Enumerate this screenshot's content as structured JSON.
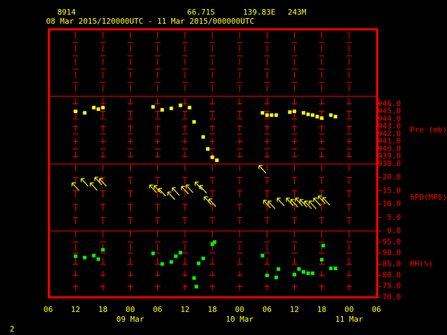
{
  "header": {
    "station": "8914",
    "lat": "66.71S",
    "lon": "139.83E",
    "elev": "243M",
    "range": "08 Mar 2015/120000UTC - 11 Mar 2015/000000UTC"
  },
  "page_number": "2",
  "x_axis": {
    "xlim": [
      "2015-03-08 06:00",
      "2015-03-11 06:00"
    ],
    "xticks": [
      {
        "value": "2015-03-08 06:00",
        "label": "06"
      },
      {
        "value": "2015-03-08 12:00",
        "label": "12"
      },
      {
        "value": "2015-03-08 18:00",
        "label": "18"
      },
      {
        "value": "2015-03-09 00:00",
        "label": "00"
      },
      {
        "value": "2015-03-09 06:00",
        "label": "06"
      },
      {
        "value": "2015-03-09 12:00",
        "label": "12"
      },
      {
        "value": "2015-03-09 18:00",
        "label": "18"
      },
      {
        "value": "2015-03-10 00:00",
        "label": "00"
      },
      {
        "value": "2015-03-10 06:00",
        "label": "06"
      },
      {
        "value": "2015-03-10 12:00",
        "label": "12"
      },
      {
        "value": "2015-03-10 18:00",
        "label": "18"
      },
      {
        "value": "2015-03-11 00:00",
        "label": "00"
      },
      {
        "value": "2015-03-11 06:00",
        "label": "06"
      }
    ],
    "day_labels": [
      {
        "value": "2015-03-09 00:00",
        "label": "09 Mar"
      },
      {
        "value": "2015-03-10 00:00",
        "label": "10 Mar"
      },
      {
        "value": "2015-03-11 00:00",
        "label": "11 Mar"
      }
    ]
  },
  "chart_data": [
    {
      "type": "scatter",
      "ylabel": "Pre (mb)",
      "color": "#ffff00",
      "ylim": [
        938,
        947
      ],
      "yticks": [
        {
          "value": 938,
          "label": "938.0"
        },
        {
          "value": 939,
          "label": "939.0"
        },
        {
          "value": 940,
          "label": "940.0"
        },
        {
          "value": 941,
          "label": "941.0"
        },
        {
          "value": 942,
          "label": "942.0"
        },
        {
          "value": 943,
          "label": "943.0"
        },
        {
          "value": 944,
          "label": "944.0"
        },
        {
          "value": 945,
          "label": "945.0"
        },
        {
          "value": 946,
          "label": "946.0"
        }
      ],
      "x": [
        "2015-03-08 12:00",
        "2015-03-08 14:00",
        "2015-03-08 16:00",
        "2015-03-08 17:00",
        "2015-03-08 18:00",
        "2015-03-09 05:00",
        "2015-03-09 07:00",
        "2015-03-09 09:00",
        "2015-03-09 11:00",
        "2015-03-09 13:00",
        "2015-03-09 14:00",
        "2015-03-09 16:00",
        "2015-03-09 17:00",
        "2015-03-09 18:00",
        "2015-03-09 19:00",
        "2015-03-10 05:00",
        "2015-03-10 06:00",
        "2015-03-10 07:00",
        "2015-03-10 08:00",
        "2015-03-10 11:00",
        "2015-03-10 12:00",
        "2015-03-10 14:00",
        "2015-03-10 15:00",
        "2015-03-10 16:00",
        "2015-03-10 17:00",
        "2015-03-10 18:00",
        "2015-03-10 20:00",
        "2015-03-10 21:00"
      ],
      "values": [
        945.0,
        944.8,
        945.5,
        945.3,
        945.5,
        945.6,
        945.2,
        945.4,
        945.8,
        945.5,
        943.6,
        941.6,
        940.0,
        938.9,
        938.5,
        944.8,
        944.5,
        944.5,
        944.5,
        944.9,
        945.0,
        944.8,
        944.6,
        944.5,
        944.3,
        944.1,
        944.5,
        944.3
      ]
    },
    {
      "type": "wind",
      "ylabel": "SPD(MPS)",
      "color": "#ffff00",
      "ylim": [
        0,
        25
      ],
      "yticks": [
        {
          "value": 0,
          "label": "0.0"
        },
        {
          "value": 5,
          "label": "5.0"
        },
        {
          "value": 10,
          "label": "10.0"
        },
        {
          "value": 15,
          "label": "15.0"
        },
        {
          "value": 20,
          "label": "20.0"
        }
      ],
      "x": [
        "2015-03-08 12:00",
        "2015-03-08 14:00",
        "2015-03-08 16:00",
        "2015-03-08 17:00",
        "2015-03-08 18:00",
        "2015-03-09 05:00",
        "2015-03-09 06:00",
        "2015-03-09 07:00",
        "2015-03-09 09:00",
        "2015-03-09 10:00",
        "2015-03-09 12:00",
        "2015-03-09 13:00",
        "2015-03-09 15:00",
        "2015-03-09 16:00",
        "2015-03-09 17:00",
        "2015-03-09 18:00",
        "2015-03-10 05:00",
        "2015-03-10 06:00",
        "2015-03-10 07:00",
        "2015-03-10 09:00",
        "2015-03-10 11:00",
        "2015-03-10 12:00",
        "2015-03-10 13:00",
        "2015-03-10 14:00",
        "2015-03-10 15:00",
        "2015-03-10 16:00",
        "2015-03-10 17:00",
        "2015-03-10 18:00",
        "2015-03-10 19:00"
      ],
      "values": [
        16.4,
        18.0,
        16.4,
        18.5,
        18.0,
        15.6,
        15.4,
        14.3,
        13.0,
        14.6,
        15.1,
        15.6,
        16.7,
        15.4,
        11.2,
        10.4,
        22.9,
        9.9,
        9.6,
        10.7,
        10.7,
        10.2,
        10.7,
        10.2,
        9.6,
        9.6,
        10.7,
        11.5,
        10.9
      ]
    },
    {
      "type": "scatter",
      "ylabel": "RH(%)",
      "color": "#00ff00",
      "ylim": [
        70,
        100
      ],
      "yticks": [
        {
          "value": 70,
          "label": "70.0"
        },
        {
          "value": 75,
          "label": "75.0"
        },
        {
          "value": 80,
          "label": "80.0"
        },
        {
          "value": 85,
          "label": "85.0"
        },
        {
          "value": 90,
          "label": "90.0"
        },
        {
          "value": 95,
          "label": "95.0"
        }
      ],
      "x": [
        "2015-03-08 12:00",
        "2015-03-08 14:00",
        "2015-03-08 16:00",
        "2015-03-08 17:00",
        "2015-03-08 18:00",
        "2015-03-09 05:00",
        "2015-03-09 07:00",
        "2015-03-09 09:00",
        "2015-03-09 10:00",
        "2015-03-09 11:00",
        "2015-03-09 14:00",
        "2015-03-09 14:30",
        "2015-03-09 15:00",
        "2015-03-09 16:00",
        "2015-03-09 18:00",
        "2015-03-09 18:30",
        "2015-03-10 05:00",
        "2015-03-10 06:00",
        "2015-03-10 08:00",
        "2015-03-10 08:30",
        "2015-03-10 12:00",
        "2015-03-10 13:00",
        "2015-03-10 14:00",
        "2015-03-10 15:00",
        "2015-03-10 16:00",
        "2015-03-10 18:00",
        "2015-03-10 18:20",
        "2015-03-10 20:00",
        "2015-03-10 21:00"
      ],
      "values": [
        88.6,
        88.0,
        88.9,
        87.3,
        91.5,
        89.9,
        85.1,
        86.0,
        88.6,
        90.2,
        78.7,
        74.8,
        85.4,
        87.6,
        94.0,
        95.0,
        88.9,
        79.9,
        79.0,
        82.8,
        80.3,
        82.8,
        81.5,
        80.9,
        80.9,
        87.0,
        93.4,
        83.1,
        83.1
      ]
    }
  ]
}
